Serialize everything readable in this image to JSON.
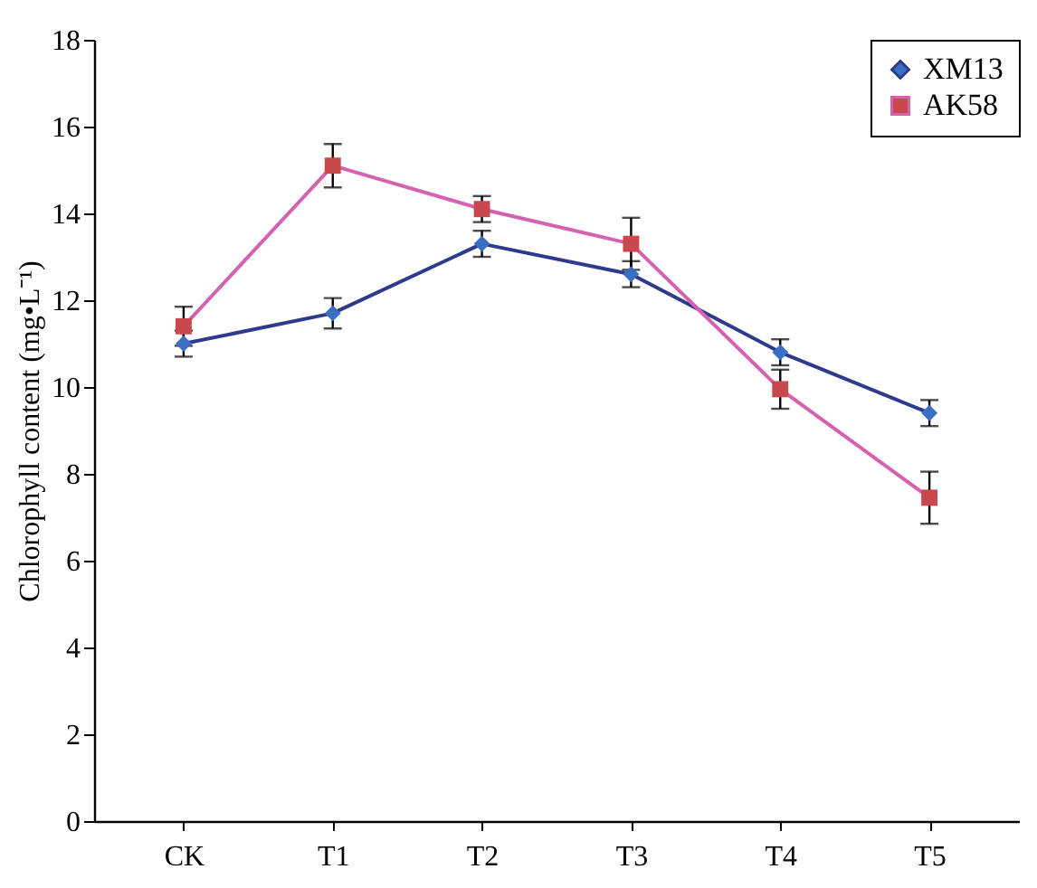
{
  "chart_data": {
    "type": "line",
    "ylabel": "Chlorophyll content (mg•L⁻¹)",
    "categories": [
      "CK",
      "T1",
      "T2",
      "T3",
      "T4",
      "T5"
    ],
    "series": [
      {
        "name": "XM13",
        "color": "#2e3a8c",
        "marker": "diamond",
        "values": [
          11.0,
          11.7,
          13.3,
          12.6,
          10.8,
          9.4
        ],
        "errors": [
          0.3,
          0.35,
          0.3,
          0.3,
          0.3,
          0.3
        ]
      },
      {
        "name": "AK58",
        "color": "#d462b0",
        "marker": "square",
        "values": [
          11.4,
          15.1,
          14.1,
          13.3,
          9.95,
          7.45
        ],
        "errors": [
          0.45,
          0.5,
          0.3,
          0.6,
          0.45,
          0.6
        ]
      }
    ],
    "ylim": [
      0,
      18
    ],
    "yticks": [
      0,
      2,
      4,
      6,
      8,
      10,
      12,
      14,
      16,
      18
    ],
    "grid": false,
    "legend": "top right",
    "line_style": "solid"
  }
}
